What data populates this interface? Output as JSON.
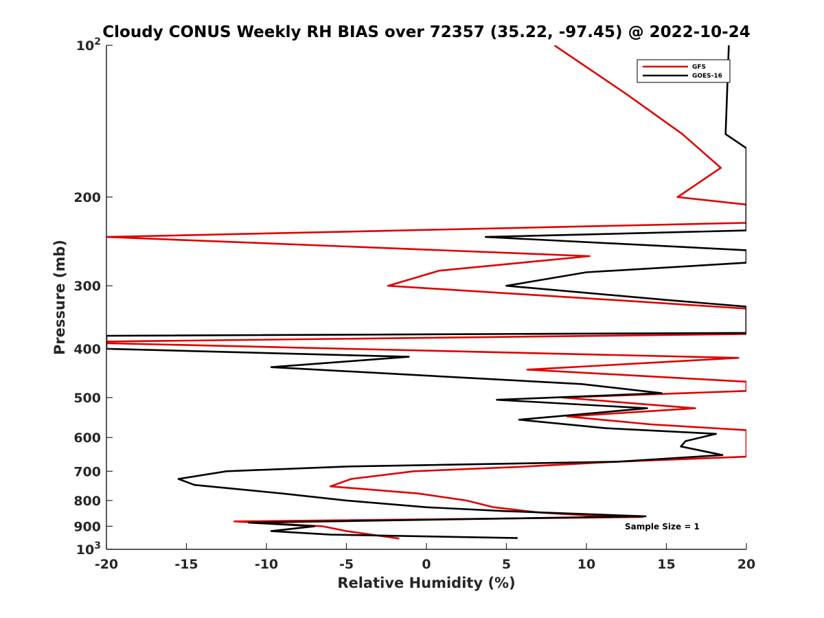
{
  "chart_data": {
    "type": "line",
    "title": "Cloudy CONUS Weekly RH BIAS over 72357 (35.22, -97.45) @ 2022-10-24",
    "xlabel": "Relative Humidity (%)",
    "ylabel": "Pressure (mb)",
    "xlim": [
      -20,
      20
    ],
    "ylim": [
      100,
      1000
    ],
    "y_scale": "log",
    "y_reversed": true,
    "x_ticks": [
      -20,
      -15,
      -10,
      -5,
      0,
      5,
      10,
      15,
      20
    ],
    "y_ticks": [
      {
        "value": 100,
        "base": "10",
        "exp": "2"
      },
      {
        "value": 200,
        "label": "200"
      },
      {
        "value": 300,
        "label": "300"
      },
      {
        "value": 400,
        "label": "400"
      },
      {
        "value": 500,
        "label": "500"
      },
      {
        "value": 600,
        "label": "600"
      },
      {
        "value": 700,
        "label": "700"
      },
      {
        "value": 800,
        "label": "800"
      },
      {
        "value": 900,
        "label": "900"
      },
      {
        "value": 1000,
        "base": "10",
        "exp": "3"
      }
    ],
    "grid": false,
    "legend_position": "top-right",
    "series": [
      {
        "name": "GFS",
        "color": "#e00000",
        "points": [
          [
            8,
            100
          ],
          [
            12.5,
            125
          ],
          [
            16,
            150
          ],
          [
            18.4,
            175
          ],
          [
            15.7,
            200
          ],
          [
            20,
            207
          ],
          [
            20,
            225
          ],
          [
            -20,
            240
          ],
          [
            10.2,
            262
          ],
          [
            0.8,
            280
          ],
          [
            -2.4,
            300
          ],
          [
            13,
            322
          ],
          [
            20,
            333
          ],
          [
            20,
            374
          ],
          [
            -20,
            387
          ],
          [
            -20,
            390
          ],
          [
            19.5,
            417
          ],
          [
            6.3,
            440
          ],
          [
            20,
            465
          ],
          [
            20,
            485
          ],
          [
            8.5,
            500
          ],
          [
            16.8,
            525
          ],
          [
            8.8,
            545
          ],
          [
            14,
            565
          ],
          [
            20,
            580
          ],
          [
            20,
            655
          ],
          [
            12,
            670
          ],
          [
            5.8,
            686
          ],
          [
            -0.8,
            700
          ],
          [
            -4.7,
            725
          ],
          [
            -6,
            750
          ],
          [
            -0.5,
            775
          ],
          [
            2.5,
            800
          ],
          [
            4.2,
            825
          ],
          [
            7,
            845
          ],
          [
            11,
            860
          ],
          [
            13.5,
            863
          ],
          [
            -12,
            880
          ],
          [
            -6.5,
            900
          ],
          [
            -5,
            920
          ],
          [
            -1.7,
            952
          ]
        ]
      },
      {
        "name": "GOES-16",
        "color": "#000000",
        "points": [
          [
            18.9,
            100
          ],
          [
            18.7,
            150
          ],
          [
            20,
            160
          ],
          [
            20,
            233
          ],
          [
            3.7,
            240
          ],
          [
            20,
            255
          ],
          [
            20,
            270
          ],
          [
            10,
            282
          ],
          [
            5,
            300
          ],
          [
            15,
            320
          ],
          [
            20,
            330
          ],
          [
            20,
            372
          ],
          [
            -20,
            377
          ],
          [
            -20,
            400
          ],
          [
            -1.1,
            415
          ],
          [
            -9.7,
            435
          ],
          [
            9.7,
            470
          ],
          [
            14.7,
            490
          ],
          [
            4.4,
            505
          ],
          [
            13.8,
            525
          ],
          [
            5.8,
            553
          ],
          [
            11.2,
            575
          ],
          [
            18.1,
            590
          ],
          [
            16.2,
            610
          ],
          [
            15.9,
            625
          ],
          [
            18.5,
            650
          ],
          [
            12,
            670
          ],
          [
            -5,
            685
          ],
          [
            -12.5,
            700
          ],
          [
            -15.5,
            725
          ],
          [
            -14.5,
            745
          ],
          [
            -9,
            775
          ],
          [
            -5,
            800
          ],
          [
            0,
            825
          ],
          [
            5,
            840
          ],
          [
            13.7,
            860
          ],
          [
            -11.1,
            885
          ],
          [
            -7,
            900
          ],
          [
            -9.7,
            920
          ],
          [
            -6,
            935
          ],
          [
            5.7,
            950
          ]
        ]
      }
    ],
    "annotation": "Sample Size = 1"
  }
}
